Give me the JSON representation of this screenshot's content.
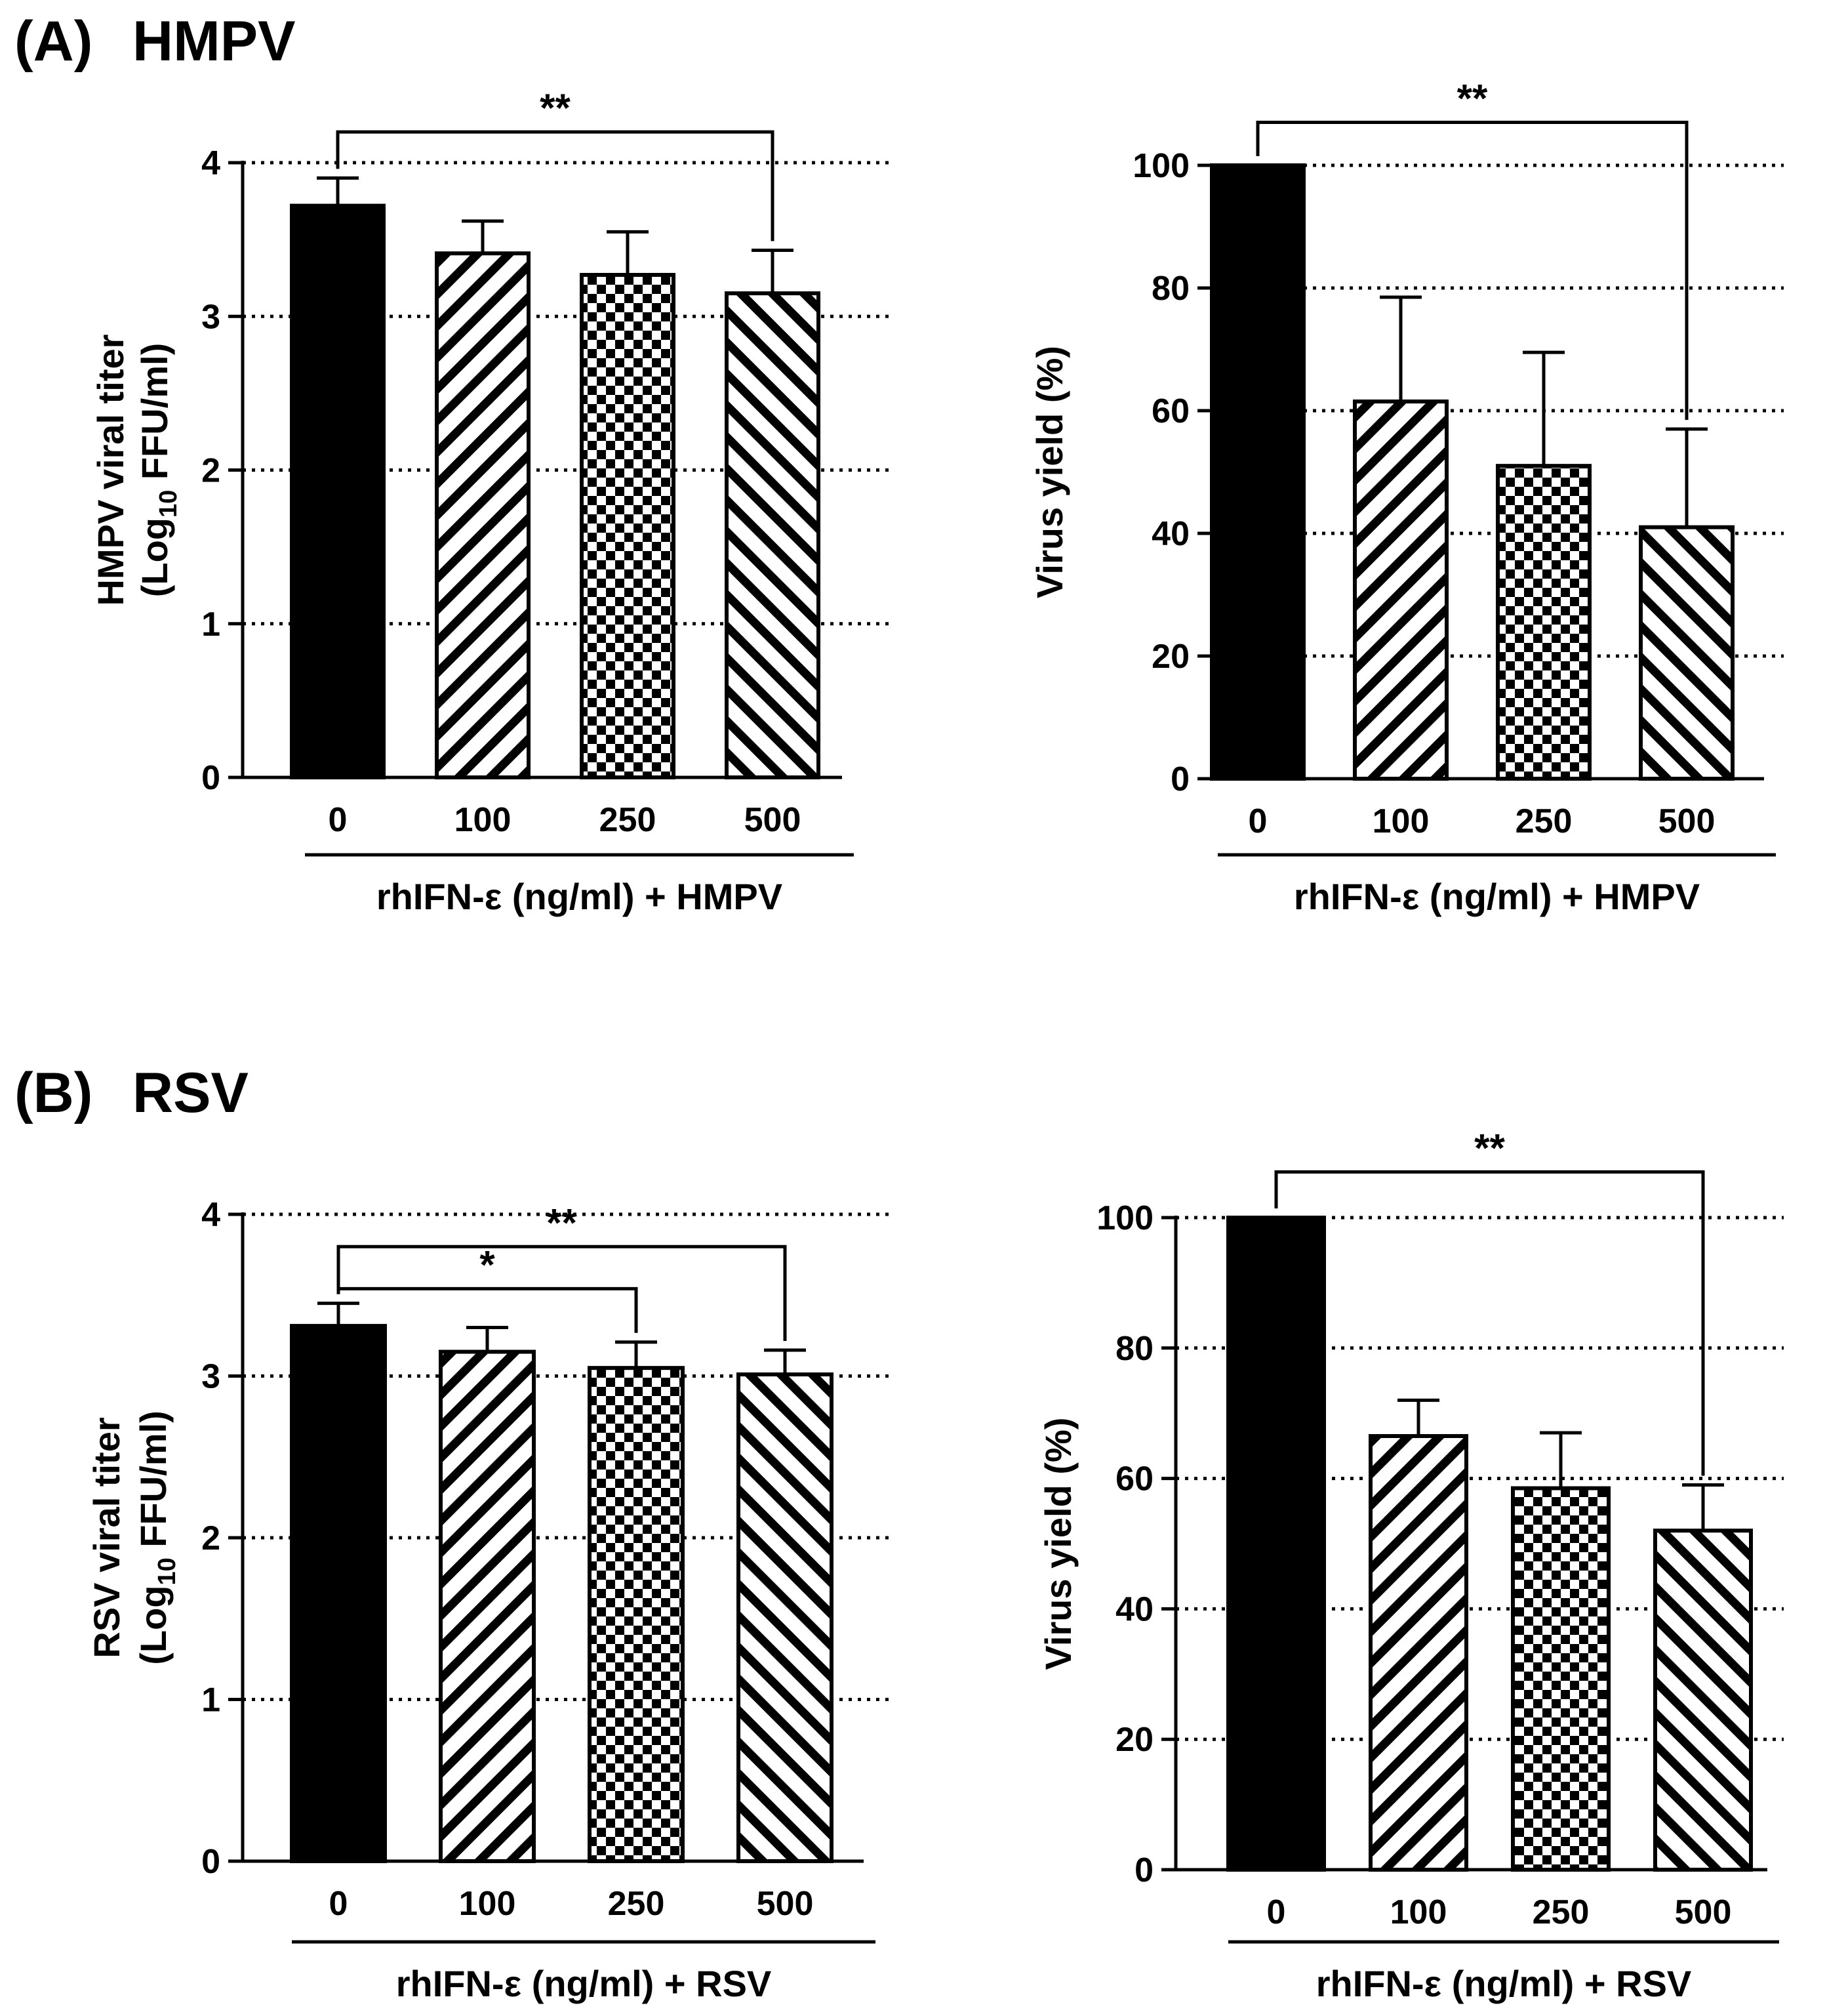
{
  "panels": [
    {
      "label": "(A)",
      "title": "HMPV"
    },
    {
      "label": "(B)",
      "title": "RSV"
    }
  ],
  "chart_data": [
    {
      "type": "bar",
      "panel": "(A) HMPV",
      "title": "",
      "categories": [
        "0",
        "100",
        "250",
        "500"
      ],
      "values": [
        3.72,
        3.41,
        3.27,
        3.15
      ],
      "errors": [
        0.18,
        0.21,
        0.28,
        0.28
      ],
      "patterns": [
        "solid",
        "diag-up",
        "checker",
        "diag-down"
      ],
      "ylabel_line1": "HMPV viral titer",
      "ylabel_line2_prefix": "(Log",
      "ylabel_line2_sub": "10",
      "ylabel_line2_suffix": " FFU/ml)",
      "xlabel": "rhIFN-ε (ng/ml) + HMPV",
      "ylim": [
        0,
        4
      ],
      "yticks": [
        0,
        1,
        2,
        3,
        4
      ],
      "grid": "dotted horizontal",
      "significance": [
        {
          "from": 0,
          "to": 3,
          "label": "**",
          "level": 4.2
        }
      ]
    },
    {
      "type": "bar",
      "panel": "(A) HMPV",
      "title": "",
      "categories": [
        "0",
        "100",
        "250",
        "500"
      ],
      "values": [
        100,
        61.5,
        51,
        41
      ],
      "errors": [
        0,
        17,
        18.5,
        16
      ],
      "patterns": [
        "solid",
        "diag-up",
        "checker",
        "diag-down"
      ],
      "ylabel_line1": "Virus yield (%)",
      "xlabel": "rhIFN-ε (ng/ml) + HMPV",
      "ylim": [
        0,
        100
      ],
      "yticks": [
        0,
        20,
        40,
        60,
        80,
        100
      ],
      "grid": "dotted horizontal",
      "significance": [
        {
          "from": 0,
          "to": 3,
          "label": "**",
          "level": 107
        }
      ]
    },
    {
      "type": "bar",
      "panel": "(B) RSV",
      "title": "",
      "categories": [
        "0",
        "100",
        "250",
        "500"
      ],
      "values": [
        3.31,
        3.15,
        3.05,
        3.01
      ],
      "errors": [
        0.14,
        0.15,
        0.16,
        0.15
      ],
      "patterns": [
        "solid",
        "diag-up",
        "checker",
        "diag-down"
      ],
      "ylabel_line1": "RSV viral titer",
      "ylabel_line2_prefix": "(Log",
      "ylabel_line2_sub": "10",
      "ylabel_line2_suffix": " FFU/ml)",
      "xlabel": "rhIFN-ε (ng/ml) + RSV",
      "ylim": [
        0,
        4
      ],
      "yticks": [
        0,
        1,
        2,
        3,
        4
      ],
      "grid": "dotted horizontal",
      "significance": [
        {
          "from": 0,
          "to": 3,
          "label": "**",
          "level": 3.8
        },
        {
          "from": 0,
          "to": 2,
          "label": "*",
          "level": 3.54
        }
      ]
    },
    {
      "type": "bar",
      "panel": "(B) RSV",
      "title": "",
      "categories": [
        "0",
        "100",
        "250",
        "500"
      ],
      "values": [
        100,
        66.5,
        58.5,
        52
      ],
      "errors": [
        0,
        5.5,
        8.5,
        7
      ],
      "patterns": [
        "solid",
        "diag-up",
        "checker",
        "diag-down"
      ],
      "ylabel_line1": "Virus yield (%)",
      "xlabel": "rhIFN-ε (ng/ml) + RSV",
      "ylim": [
        0,
        100
      ],
      "yticks": [
        0,
        20,
        40,
        60,
        80,
        100
      ],
      "grid": "dotted horizontal",
      "significance": [
        {
          "from": 0,
          "to": 3,
          "label": "**",
          "level": 107
        }
      ]
    }
  ]
}
